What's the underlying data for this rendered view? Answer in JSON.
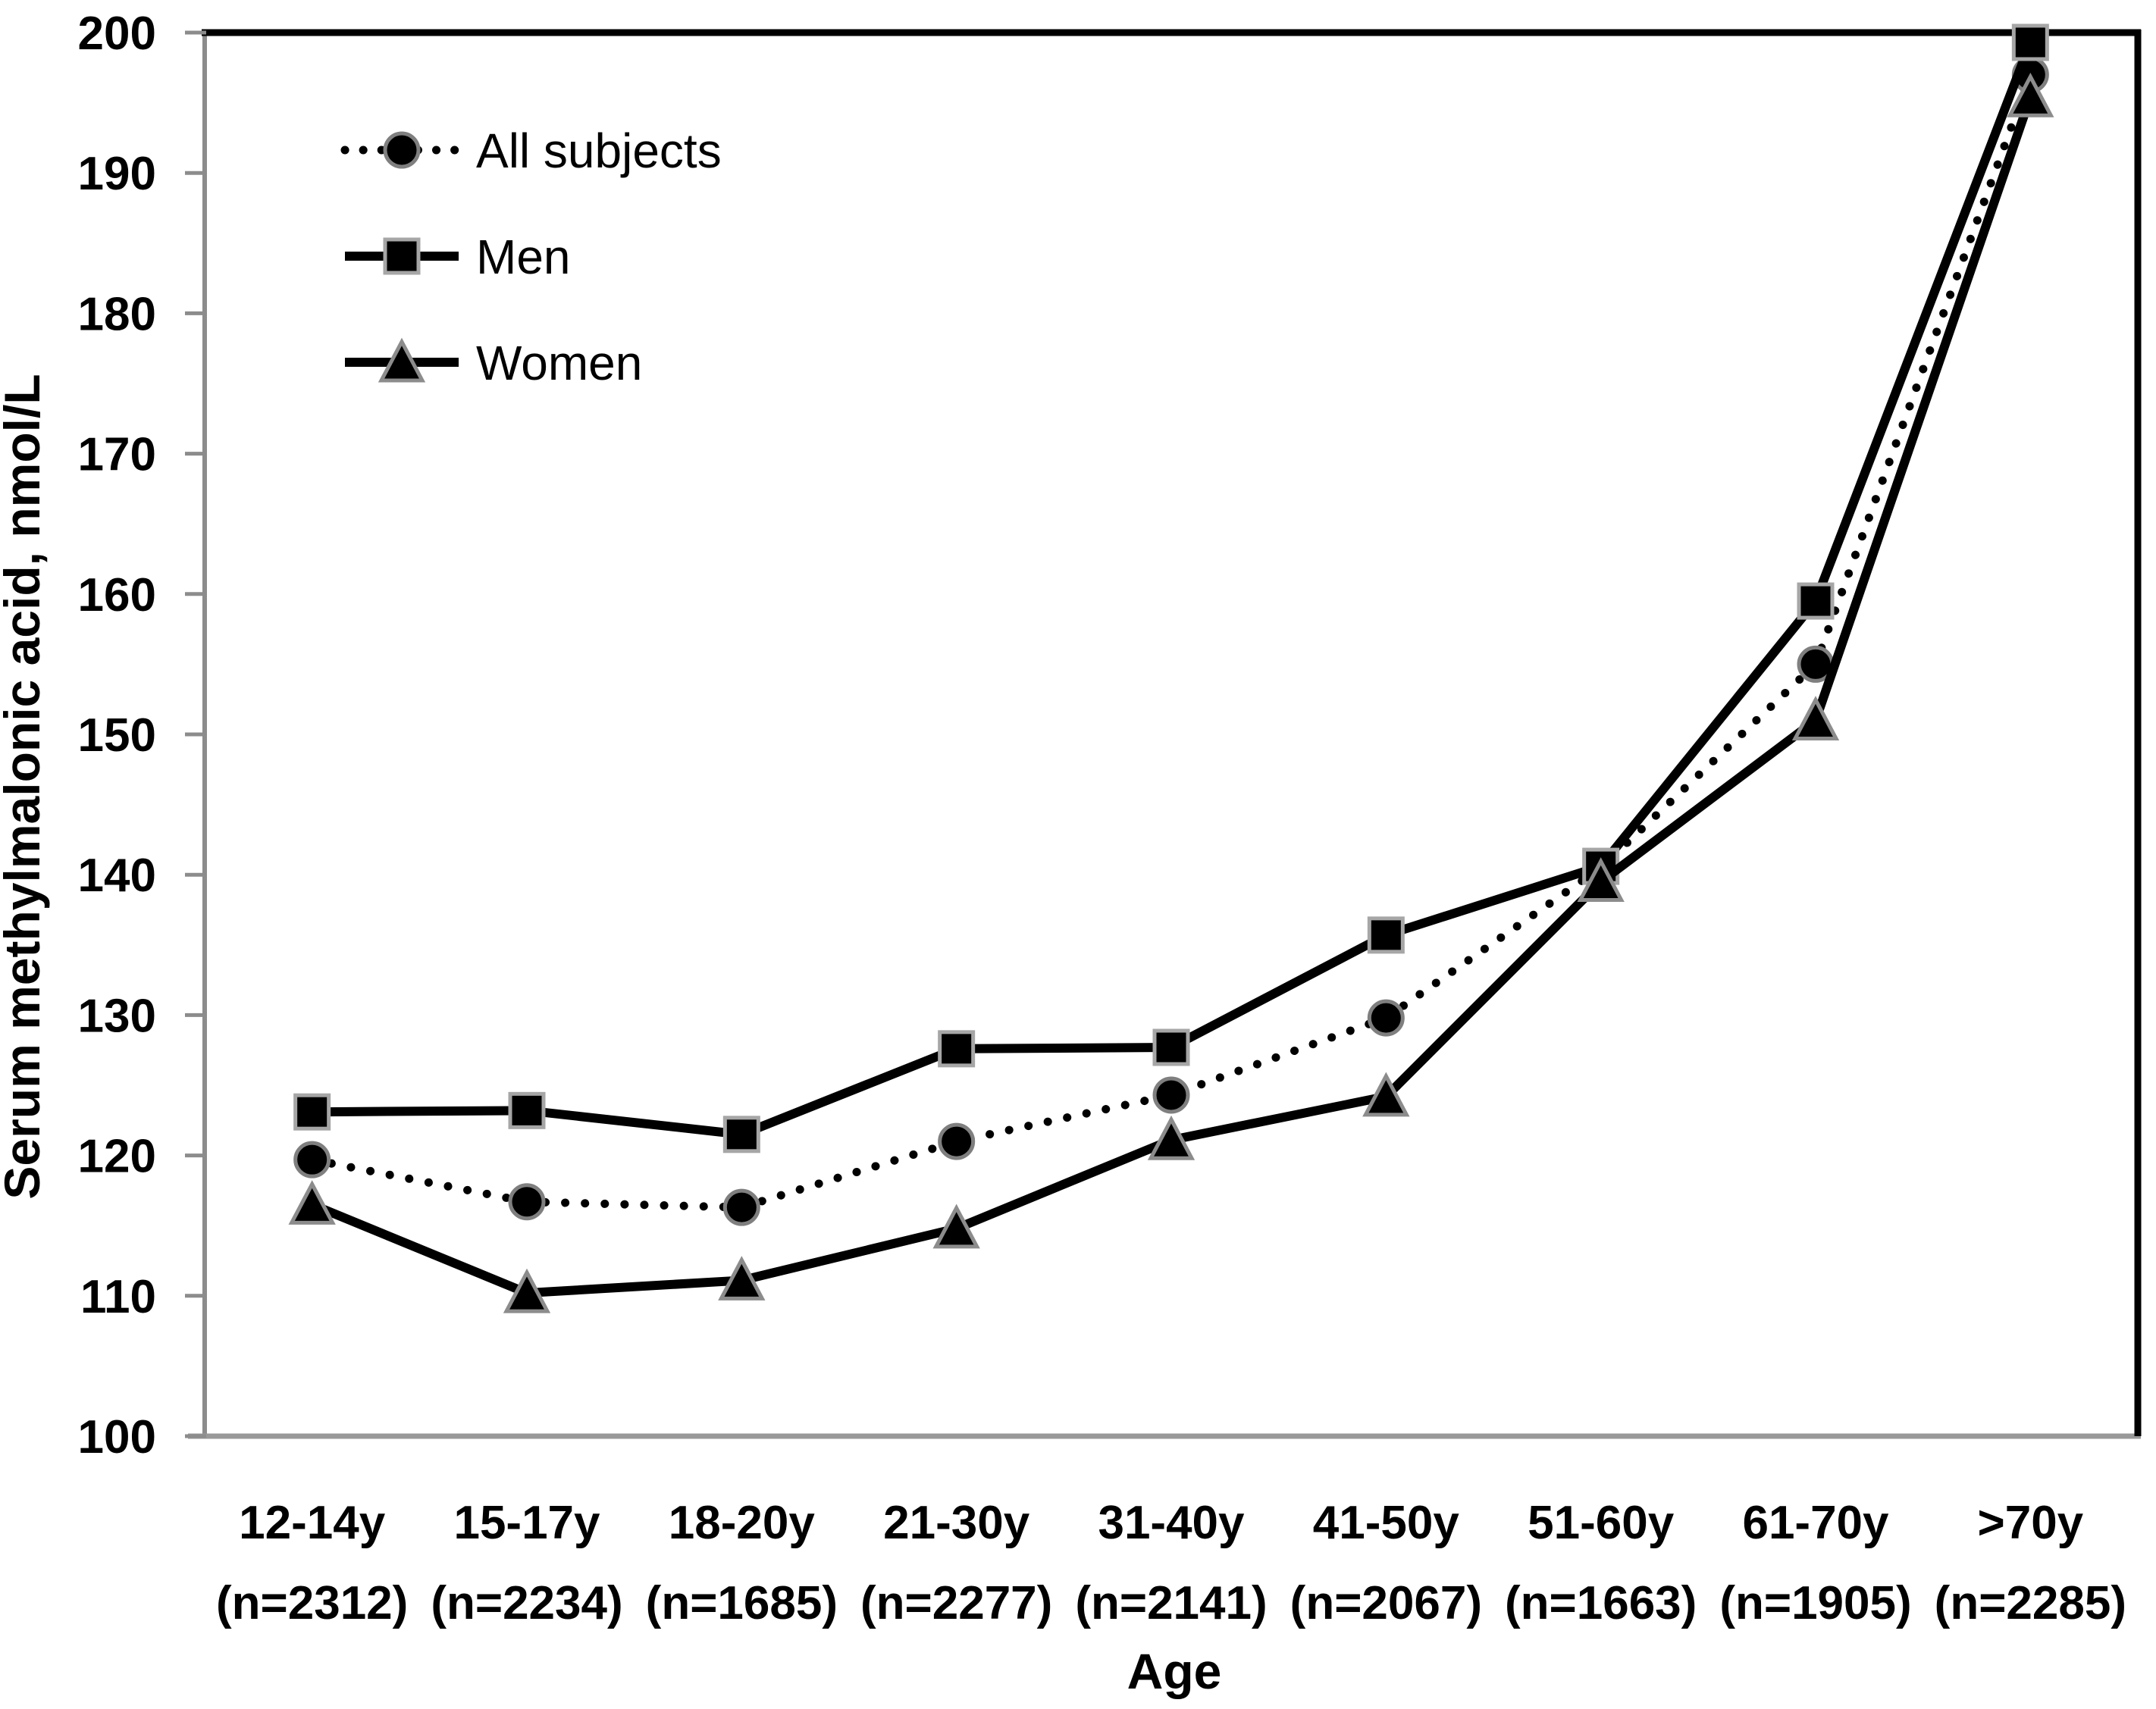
{
  "chart_data": {
    "type": "line",
    "title": "",
    "xlabel": "Age",
    "ylabel": "Serum methylmalonic acid, nmol/L",
    "ylim": [
      100,
      200
    ],
    "yticks": [
      100,
      110,
      120,
      130,
      140,
      150,
      160,
      170,
      180,
      190,
      200
    ],
    "grid": false,
    "legend_position": "top-left-inside",
    "legend_entries": [
      "All subjects",
      "Men",
      "Women"
    ],
    "categories": [
      "12-14y",
      "15-17y",
      "18-20y",
      "21-30y",
      "31-40y",
      "41-50y",
      "51-60y",
      "61-70y",
      ">70y"
    ],
    "category_counts": [
      "(n=2312)",
      "(n=2234)",
      "(n=1685)",
      "(n=2277)",
      "(n=2141)",
      "(n=2067)",
      "(n=1663)",
      "(n=1905)",
      "(n=2285)"
    ],
    "series": [
      {
        "name": "All subjects",
        "marker": "circle",
        "line_style": "dotted",
        "values": [
          119.7,
          116.7,
          116.3,
          121.0,
          124.3,
          129.8,
          140.5,
          155.0,
          197.0
        ]
      },
      {
        "name": "Men",
        "marker": "square",
        "line_style": "solid",
        "values": [
          123.1,
          123.2,
          121.5,
          127.6,
          127.7,
          135.7,
          140.6,
          159.5,
          199.3
        ]
      },
      {
        "name": "Women",
        "marker": "triangle",
        "line_style": "solid",
        "values": [
          116.5,
          110.2,
          111.1,
          114.8,
          121.1,
          124.2,
          139.5,
          151.0,
          195.4
        ]
      }
    ],
    "colors": {
      "series_line": "#000000",
      "marker_fill": "#000000",
      "circle_outline": "#7f7f7f",
      "square_outline": "#a6a6a6",
      "triangle_outline": "#8c8c8c",
      "axis_line": "#8c8c8c",
      "baseline": "#999999",
      "border": "#000000",
      "text": "#000000",
      "background": "#ffffff"
    }
  }
}
